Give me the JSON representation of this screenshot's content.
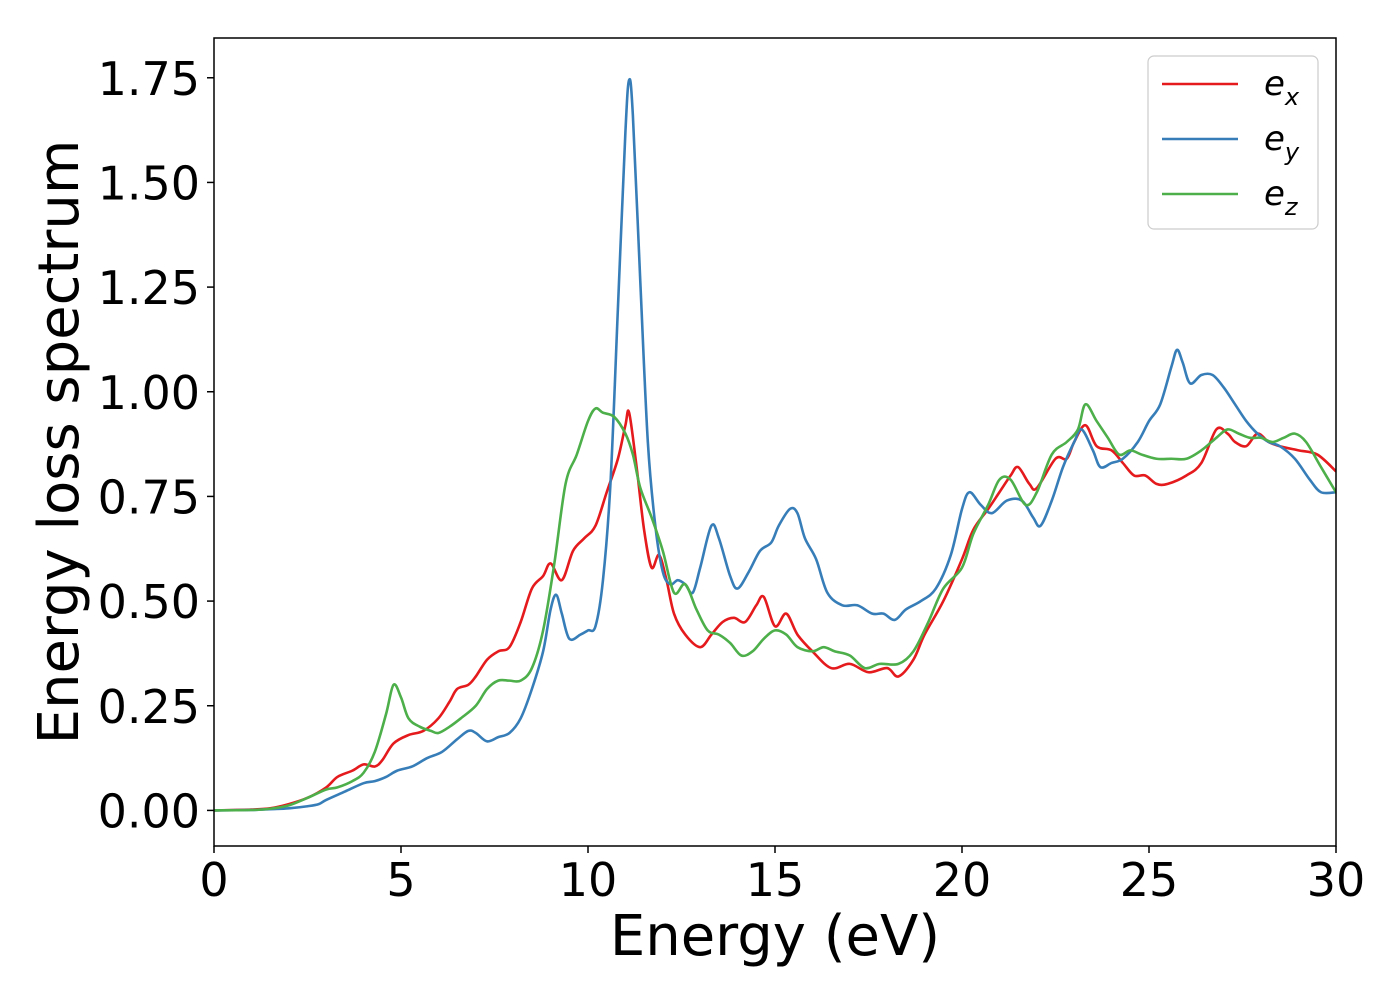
{
  "chart_data": {
    "type": "line",
    "title": "",
    "xlabel": "Energy (eV)",
    "ylabel": "Energy loss spectrum",
    "xlim": [
      0,
      30
    ],
    "ylim": [
      -0.085,
      1.845
    ],
    "x_ticks": [
      0,
      5,
      10,
      15,
      20,
      25,
      30
    ],
    "x_tick_labels": [
      "0",
      "5",
      "10",
      "15",
      "20",
      "25",
      "30"
    ],
    "y_ticks": [
      0.0,
      0.25,
      0.5,
      0.75,
      1.0,
      1.25,
      1.5,
      1.75
    ],
    "y_tick_labels": [
      "0.00",
      "0.25",
      "0.50",
      "0.75",
      "1.00",
      "1.25",
      "1.50",
      "1.75"
    ],
    "grid": false,
    "legend_position": "top-right",
    "series": [
      {
        "name": "e",
        "subscript": "x",
        "color": "#e41a1c",
        "points": [
          [
            0,
            0
          ],
          [
            1,
            0.002
          ],
          [
            1.5,
            0.005
          ],
          [
            2,
            0.015
          ],
          [
            2.5,
            0.03
          ],
          [
            3,
            0.055
          ],
          [
            3.3,
            0.08
          ],
          [
            3.7,
            0.095
          ],
          [
            4,
            0.11
          ],
          [
            4.3,
            0.105
          ],
          [
            4.5,
            0.12
          ],
          [
            4.8,
            0.16
          ],
          [
            5.2,
            0.18
          ],
          [
            5.6,
            0.19
          ],
          [
            6,
            0.22
          ],
          [
            6.3,
            0.26
          ],
          [
            6.5,
            0.29
          ],
          [
            6.8,
            0.3
          ],
          [
            7,
            0.32
          ],
          [
            7.3,
            0.36
          ],
          [
            7.6,
            0.38
          ],
          [
            7.9,
            0.39
          ],
          [
            8.2,
            0.45
          ],
          [
            8.5,
            0.53
          ],
          [
            8.8,
            0.56
          ],
          [
            9,
            0.59
          ],
          [
            9.3,
            0.55
          ],
          [
            9.6,
            0.62
          ],
          [
            9.9,
            0.65
          ],
          [
            10.2,
            0.68
          ],
          [
            10.5,
            0.76
          ],
          [
            10.8,
            0.84
          ],
          [
            11,
            0.92
          ],
          [
            11.1,
            0.95
          ],
          [
            11.3,
            0.82
          ],
          [
            11.5,
            0.67
          ],
          [
            11.7,
            0.58
          ],
          [
            11.9,
            0.61
          ],
          [
            12.1,
            0.55
          ],
          [
            12.3,
            0.47
          ],
          [
            12.6,
            0.42
          ],
          [
            13,
            0.39
          ],
          [
            13.3,
            0.42
          ],
          [
            13.6,
            0.45
          ],
          [
            13.9,
            0.46
          ],
          [
            14.2,
            0.45
          ],
          [
            14.5,
            0.49
          ],
          [
            14.7,
            0.51
          ],
          [
            15,
            0.44
          ],
          [
            15.3,
            0.47
          ],
          [
            15.6,
            0.42
          ],
          [
            16,
            0.38
          ],
          [
            16.5,
            0.34
          ],
          [
            17,
            0.35
          ],
          [
            17.5,
            0.33
          ],
          [
            18,
            0.34
          ],
          [
            18.3,
            0.32
          ],
          [
            18.7,
            0.36
          ],
          [
            19,
            0.42
          ],
          [
            19.5,
            0.5
          ],
          [
            20,
            0.6
          ],
          [
            20.3,
            0.67
          ],
          [
            20.7,
            0.72
          ],
          [
            21,
            0.76
          ],
          [
            21.3,
            0.8
          ],
          [
            21.5,
            0.82
          ],
          [
            21.8,
            0.78
          ],
          [
            22,
            0.77
          ],
          [
            22.5,
            0.84
          ],
          [
            22.8,
            0.84
          ],
          [
            23,
            0.88
          ],
          [
            23.3,
            0.92
          ],
          [
            23.6,
            0.87
          ],
          [
            24,
            0.86
          ],
          [
            24.3,
            0.83
          ],
          [
            24.6,
            0.8
          ],
          [
            24.9,
            0.8
          ],
          [
            25.2,
            0.78
          ],
          [
            25.5,
            0.78
          ],
          [
            26,
            0.8
          ],
          [
            26.4,
            0.83
          ],
          [
            26.8,
            0.91
          ],
          [
            27.1,
            0.9
          ],
          [
            27.3,
            0.88
          ],
          [
            27.6,
            0.87
          ],
          [
            27.9,
            0.9
          ],
          [
            28.2,
            0.88
          ],
          [
            28.5,
            0.87
          ],
          [
            29,
            0.86
          ],
          [
            29.5,
            0.85
          ],
          [
            30,
            0.81
          ]
        ]
      },
      {
        "name": "e",
        "subscript": "y",
        "color": "#377eb8",
        "points": [
          [
            0,
            0
          ],
          [
            1,
            0.001
          ],
          [
            1.5,
            0.003
          ],
          [
            2,
            0.005
          ],
          [
            2.5,
            0.01
          ],
          [
            2.8,
            0.015
          ],
          [
            3,
            0.025
          ],
          [
            3.5,
            0.045
          ],
          [
            4,
            0.065
          ],
          [
            4.3,
            0.07
          ],
          [
            4.6,
            0.08
          ],
          [
            4.9,
            0.095
          ],
          [
            5.3,
            0.105
          ],
          [
            5.7,
            0.125
          ],
          [
            6.1,
            0.14
          ],
          [
            6.5,
            0.17
          ],
          [
            6.8,
            0.19
          ],
          [
            7,
            0.185
          ],
          [
            7.3,
            0.165
          ],
          [
            7.6,
            0.175
          ],
          [
            7.9,
            0.185
          ],
          [
            8.2,
            0.22
          ],
          [
            8.5,
            0.29
          ],
          [
            8.8,
            0.38
          ],
          [
            9,
            0.48
          ],
          [
            9.15,
            0.515
          ],
          [
            9.3,
            0.47
          ],
          [
            9.5,
            0.41
          ],
          [
            9.8,
            0.42
          ],
          [
            10,
            0.43
          ],
          [
            10.2,
            0.44
          ],
          [
            10.4,
            0.55
          ],
          [
            10.6,
            0.78
          ],
          [
            10.8,
            1.2
          ],
          [
            11,
            1.62
          ],
          [
            11.1,
            1.745
          ],
          [
            11.2,
            1.66
          ],
          [
            11.4,
            1.26
          ],
          [
            11.6,
            0.88
          ],
          [
            11.8,
            0.68
          ],
          [
            12,
            0.57
          ],
          [
            12.2,
            0.54
          ],
          [
            12.4,
            0.55
          ],
          [
            12.6,
            0.54
          ],
          [
            12.8,
            0.52
          ],
          [
            13,
            0.58
          ],
          [
            13.3,
            0.68
          ],
          [
            13.5,
            0.65
          ],
          [
            13.8,
            0.56
          ],
          [
            14,
            0.53
          ],
          [
            14.3,
            0.57
          ],
          [
            14.6,
            0.62
          ],
          [
            14.9,
            0.64
          ],
          [
            15.1,
            0.68
          ],
          [
            15.4,
            0.72
          ],
          [
            15.6,
            0.71
          ],
          [
            15.8,
            0.65
          ],
          [
            16.1,
            0.6
          ],
          [
            16.4,
            0.52
          ],
          [
            16.8,
            0.49
          ],
          [
            17.2,
            0.49
          ],
          [
            17.6,
            0.47
          ],
          [
            17.9,
            0.47
          ],
          [
            18.2,
            0.455
          ],
          [
            18.5,
            0.48
          ],
          [
            18.9,
            0.5
          ],
          [
            19.3,
            0.53
          ],
          [
            19.7,
            0.61
          ],
          [
            20,
            0.72
          ],
          [
            20.2,
            0.76
          ],
          [
            20.5,
            0.73
          ],
          [
            20.8,
            0.71
          ],
          [
            21.2,
            0.74
          ],
          [
            21.6,
            0.74
          ],
          [
            21.9,
            0.7
          ],
          [
            22.1,
            0.68
          ],
          [
            22.4,
            0.74
          ],
          [
            22.7,
            0.82
          ],
          [
            23,
            0.88
          ],
          [
            23.2,
            0.91
          ],
          [
            23.5,
            0.86
          ],
          [
            23.7,
            0.82
          ],
          [
            24,
            0.83
          ],
          [
            24.3,
            0.84
          ],
          [
            24.7,
            0.88
          ],
          [
            25,
            0.93
          ],
          [
            25.3,
            0.97
          ],
          [
            25.6,
            1.06
          ],
          [
            25.75,
            1.1
          ],
          [
            25.9,
            1.07
          ],
          [
            26.1,
            1.02
          ],
          [
            26.4,
            1.04
          ],
          [
            26.7,
            1.04
          ],
          [
            27,
            1.01
          ],
          [
            27.3,
            0.97
          ],
          [
            27.6,
            0.93
          ],
          [
            27.9,
            0.9
          ],
          [
            28.2,
            0.88
          ],
          [
            28.5,
            0.87
          ],
          [
            28.9,
            0.84
          ],
          [
            29.3,
            0.79
          ],
          [
            29.6,
            0.76
          ],
          [
            30,
            0.76
          ]
        ]
      },
      {
        "name": "e",
        "subscript": "z",
        "color": "#4daf4a",
        "points": [
          [
            0,
            0
          ],
          [
            1,
            0.001
          ],
          [
            1.5,
            0.004
          ],
          [
            2,
            0.012
          ],
          [
            2.5,
            0.03
          ],
          [
            3,
            0.05
          ],
          [
            3.3,
            0.055
          ],
          [
            3.7,
            0.07
          ],
          [
            4,
            0.09
          ],
          [
            4.3,
            0.14
          ],
          [
            4.6,
            0.23
          ],
          [
            4.8,
            0.3
          ],
          [
            5,
            0.27
          ],
          [
            5.2,
            0.22
          ],
          [
            5.5,
            0.2
          ],
          [
            5.8,
            0.19
          ],
          [
            6,
            0.185
          ],
          [
            6.3,
            0.2
          ],
          [
            6.6,
            0.22
          ],
          [
            7,
            0.25
          ],
          [
            7.3,
            0.29
          ],
          [
            7.6,
            0.31
          ],
          [
            7.9,
            0.31
          ],
          [
            8.2,
            0.31
          ],
          [
            8.5,
            0.34
          ],
          [
            8.8,
            0.43
          ],
          [
            9.1,
            0.59
          ],
          [
            9.4,
            0.78
          ],
          [
            9.7,
            0.85
          ],
          [
            10,
            0.93
          ],
          [
            10.2,
            0.96
          ],
          [
            10.4,
            0.95
          ],
          [
            10.7,
            0.94
          ],
          [
            11,
            0.9
          ],
          [
            11.2,
            0.85
          ],
          [
            11.4,
            0.77
          ],
          [
            11.7,
            0.7
          ],
          [
            12,
            0.62
          ],
          [
            12.3,
            0.52
          ],
          [
            12.6,
            0.54
          ],
          [
            12.9,
            0.48
          ],
          [
            13.2,
            0.43
          ],
          [
            13.5,
            0.42
          ],
          [
            13.8,
            0.4
          ],
          [
            14.1,
            0.37
          ],
          [
            14.4,
            0.38
          ],
          [
            14.7,
            0.41
          ],
          [
            15,
            0.43
          ],
          [
            15.3,
            0.42
          ],
          [
            15.6,
            0.39
          ],
          [
            16,
            0.38
          ],
          [
            16.3,
            0.39
          ],
          [
            16.6,
            0.38
          ],
          [
            17,
            0.37
          ],
          [
            17.4,
            0.34
          ],
          [
            17.8,
            0.35
          ],
          [
            18.3,
            0.35
          ],
          [
            18.7,
            0.38
          ],
          [
            19.1,
            0.45
          ],
          [
            19.5,
            0.53
          ],
          [
            20,
            0.58
          ],
          [
            20.3,
            0.66
          ],
          [
            20.7,
            0.73
          ],
          [
            21,
            0.79
          ],
          [
            21.3,
            0.79
          ],
          [
            21.7,
            0.73
          ],
          [
            22,
            0.76
          ],
          [
            22.4,
            0.85
          ],
          [
            22.8,
            0.88
          ],
          [
            23.1,
            0.91
          ],
          [
            23.3,
            0.97
          ],
          [
            23.6,
            0.93
          ],
          [
            23.9,
            0.89
          ],
          [
            24.2,
            0.85
          ],
          [
            24.5,
            0.86
          ],
          [
            24.8,
            0.85
          ],
          [
            25.2,
            0.84
          ],
          [
            25.6,
            0.84
          ],
          [
            26,
            0.84
          ],
          [
            26.4,
            0.86
          ],
          [
            26.8,
            0.89
          ],
          [
            27.1,
            0.91
          ],
          [
            27.4,
            0.9
          ],
          [
            27.7,
            0.89
          ],
          [
            28,
            0.89
          ],
          [
            28.3,
            0.88
          ],
          [
            28.6,
            0.89
          ],
          [
            28.9,
            0.9
          ],
          [
            29.2,
            0.88
          ],
          [
            29.6,
            0.82
          ],
          [
            30,
            0.76
          ]
        ]
      }
    ]
  }
}
